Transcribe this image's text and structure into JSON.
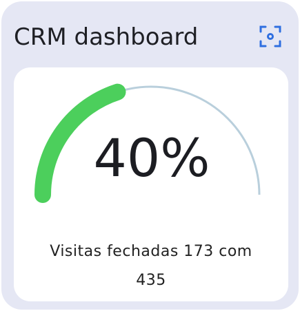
{
  "chart_data": {
    "type": "gauge",
    "title": "CRM dashboard",
    "values": [
      40
    ],
    "value_labels": [
      "40%"
    ],
    "ylim": [
      0,
      100
    ],
    "color": "#4ccf5c",
    "track_color": "#b9cfdc",
    "caption": "Visitas fechadas 173 com 435"
  }
}
